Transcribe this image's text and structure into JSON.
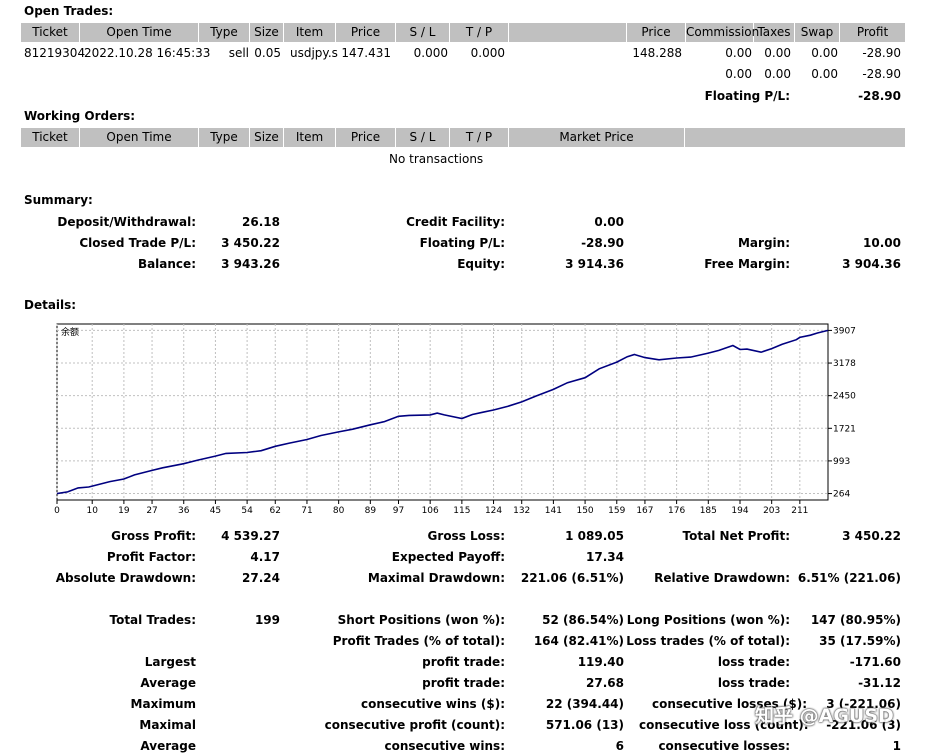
{
  "open_trades": {
    "title": "Open Trades:",
    "headers": [
      "Ticket",
      "Open Time",
      "Type",
      "Size",
      "Item",
      "Price",
      "S / L",
      "T / P",
      "",
      "Price",
      "Commission",
      "Taxes",
      "Swap",
      "Profit"
    ],
    "row": {
      "ticket": "81219304",
      "open_time": "2022.10.28 16:45:33",
      "type": "sell",
      "size": "0.05",
      "item": "usdjpy.s",
      "price": "147.431",
      "sl": "0.000",
      "tp": "0.000",
      "cur_price": "148.288",
      "commission": "0.00",
      "taxes": "0.00",
      "swap": "0.00",
      "profit": "-28.90"
    },
    "subtotal": {
      "commission": "0.00",
      "taxes": "0.00",
      "swap": "0.00",
      "profit": "-28.90"
    },
    "floating_label": "Floating P/L:",
    "floating_value": "-28.90"
  },
  "working_orders": {
    "title": "Working Orders:",
    "headers": [
      "Ticket",
      "Open Time",
      "Type",
      "Size",
      "Item",
      "Price",
      "S / L",
      "T / P",
      "Market Price",
      ""
    ],
    "empty": "No transactions"
  },
  "summary": {
    "title": "Summary:",
    "deposit_label": "Deposit/Withdrawal:",
    "deposit": "26.18",
    "credit_label": "Credit Facility:",
    "credit": "0.00",
    "closed_label": "Closed Trade P/L:",
    "closed": "3 450.22",
    "floating_label": "Floating P/L:",
    "floating": "-28.90",
    "margin_label": "Margin:",
    "margin": "10.00",
    "balance_label": "Balance:",
    "balance": "3 943.26",
    "equity_label": "Equity:",
    "equity": "3 914.36",
    "free_margin_label": "Free Margin:",
    "free_margin": "3 904.36"
  },
  "details": {
    "title": "Details:",
    "gross_profit_label": "Gross Profit:",
    "gross_profit": "4 539.27",
    "gross_loss_label": "Gross Loss:",
    "gross_loss": "1 089.05",
    "total_net_label": "Total Net Profit:",
    "total_net": "3 450.22",
    "profit_factor_label": "Profit Factor:",
    "profit_factor": "4.17",
    "expected_payoff_label": "Expected Payoff:",
    "expected_payoff": "17.34",
    "abs_dd_label": "Absolute Drawdown:",
    "abs_dd": "27.24",
    "max_dd_label": "Maximal Drawdown:",
    "max_dd": "221.06 (6.51%)",
    "rel_dd_label": "Relative Drawdown:",
    "rel_dd": "6.51% (221.06)",
    "total_trades_label": "Total Trades:",
    "total_trades": "199",
    "short_label": "Short Positions (won %):",
    "short": "52 (86.54%)",
    "long_label": "Long Positions (won %):",
    "long": "147 (80.95%)",
    "profit_trades_label": "Profit Trades (% of total):",
    "profit_trades": "164 (82.41%)",
    "loss_trades_label": "Loss trades (% of total):",
    "loss_trades": "35 (17.59%)",
    "largest_label": "Largest",
    "largest_profit_label": "profit trade:",
    "largest_profit": "119.40",
    "largest_loss_label": "loss trade:",
    "largest_loss": "-171.60",
    "average_label": "Average",
    "average_profit_label": "profit trade:",
    "average_profit": "27.68",
    "average_loss_label": "loss trade:",
    "average_loss": "-31.12",
    "maximum_label": "Maximum",
    "max_cons_wins_label": "consecutive wins ($):",
    "max_cons_wins": "22 (394.44)",
    "max_cons_loss_label": "consecutive losses ($):",
    "max_cons_loss": "3 (-221.06)",
    "maximal_label": "Maximal",
    "maximal_profit_label": "consecutive profit (count):",
    "maximal_profit": "571.06 (13)",
    "maximal_loss_label": "consecutive loss (count):",
    "maximal_loss": "-221.06 (3)",
    "average2_label": "Average",
    "avg_cons_wins_label": "consecutive wins:",
    "avg_cons_wins": "6",
    "avg_cons_loss_label": "consecutive losses:",
    "avg_cons_loss": "1"
  },
  "watermark": "知乎 @AGUSD",
  "chart_data": {
    "type": "line",
    "title": "余额",
    "x_ticks": [
      0,
      10,
      19,
      27,
      36,
      45,
      54,
      62,
      71,
      80,
      89,
      97,
      106,
      115,
      124,
      132,
      141,
      150,
      159,
      167,
      176,
      185,
      194,
      203,
      211
    ],
    "y_ticks": [
      264,
      993,
      1721,
      2450,
      3178,
      3907
    ],
    "xlim": [
      0,
      219
    ],
    "ylim": [
      120,
      4050
    ],
    "line_color": "#000080",
    "series": [
      {
        "x": [
          0,
          3,
          6,
          9,
          10,
          15,
          19,
          22,
          27,
          30,
          36,
          40,
          45,
          48,
          54,
          58,
          62,
          66,
          71,
          75,
          80,
          84,
          89,
          93,
          97,
          100,
          106,
          108,
          110,
          115,
          118,
          121,
          124,
          128,
          132,
          136,
          141,
          145,
          150,
          154,
          159,
          162,
          164,
          167,
          171,
          176,
          180,
          185,
          188,
          192,
          194,
          196,
          200,
          203,
          206,
          210,
          211,
          214,
          216,
          219
        ],
        "y": [
          264,
          300,
          390,
          410,
          430,
          530,
          590,
          680,
          780,
          840,
          930,
          1010,
          1100,
          1160,
          1180,
          1220,
          1320,
          1390,
          1470,
          1560,
          1640,
          1700,
          1800,
          1870,
          1990,
          2010,
          2020,
          2060,
          2020,
          1940,
          2030,
          2080,
          2130,
          2210,
          2310,
          2440,
          2590,
          2740,
          2850,
          3050,
          3200,
          3320,
          3370,
          3300,
          3250,
          3290,
          3310,
          3400,
          3460,
          3570,
          3480,
          3490,
          3420,
          3500,
          3600,
          3700,
          3750,
          3800,
          3850,
          3907
        ]
      }
    ]
  }
}
